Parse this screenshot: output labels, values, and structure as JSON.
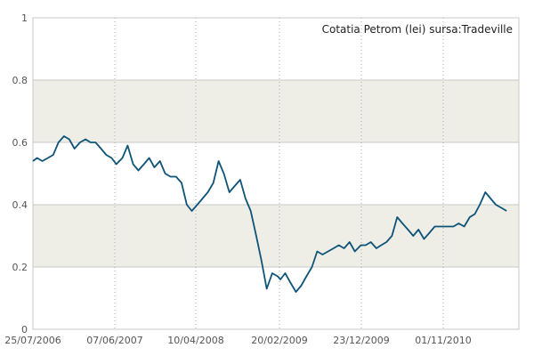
{
  "chart_data": {
    "type": "line",
    "title": "Cotatia Petrom (lei) sursa:Tradeville",
    "xlabel": "",
    "ylabel": "",
    "ylim": [
      0,
      1
    ],
    "grid": true,
    "y_ticks": [
      "0",
      "0.2",
      "0.4",
      "0.6",
      "0.8",
      "1"
    ],
    "x_ticks": [
      "25/07/2006",
      "07/06/2007",
      "10/04/2008",
      "20/02/2009",
      "23/12/2009",
      "01/11/2010"
    ],
    "colors": {
      "line": "#0e5479",
      "band": "#eeeee6",
      "border": "#c8c8c8",
      "grid": "#aaaaaa"
    },
    "series": [
      {
        "x": [
          "2006-07-25",
          "2006-08-10",
          "2006-08-30",
          "2006-09-20",
          "2006-10-10",
          "2006-10-30",
          "2006-11-20",
          "2006-12-10",
          "2006-12-30",
          "2007-01-20",
          "2007-02-10",
          "2007-03-01",
          "2007-03-20",
          "2007-04-10",
          "2007-04-30",
          "2007-05-20",
          "2007-06-07",
          "2007-06-30",
          "2007-07-20",
          "2007-08-10",
          "2007-08-30",
          "2007-09-20",
          "2007-10-10",
          "2007-10-30",
          "2007-11-20",
          "2007-12-10",
          "2007-12-30",
          "2008-01-20",
          "2008-02-10",
          "2008-03-01",
          "2008-03-20",
          "2008-04-10",
          "2008-04-30",
          "2008-05-20",
          "2008-06-10",
          "2008-06-30",
          "2008-07-20",
          "2008-08-10",
          "2008-08-30",
          "2008-09-20",
          "2008-10-10",
          "2008-10-30",
          "2008-11-20",
          "2008-12-10",
          "2008-12-30",
          "2009-01-20",
          "2009-02-10",
          "2009-02-20",
          "2009-03-10",
          "2009-03-30",
          "2009-04-20",
          "2009-05-10",
          "2009-05-30",
          "2009-06-20",
          "2009-07-10",
          "2009-07-30",
          "2009-08-20",
          "2009-09-10",
          "2009-09-30",
          "2009-10-20",
          "2009-11-10",
          "2009-11-30",
          "2009-12-23",
          "2010-01-10",
          "2010-01-30",
          "2010-02-20",
          "2010-03-10",
          "2010-03-30",
          "2010-04-20",
          "2010-05-10",
          "2010-05-30",
          "2010-06-20",
          "2010-07-10",
          "2010-07-30",
          "2010-08-20",
          "2010-09-10",
          "2010-09-30",
          "2010-11-01",
          "2010-11-20",
          "2010-12-10",
          "2010-12-30",
          "2011-01-20",
          "2011-02-10",
          "2011-03-01",
          "2011-03-20",
          "2011-04-10",
          "2011-04-30",
          "2011-05-20",
          "2011-06-10",
          "2011-06-30"
        ],
        "y": [
          0.54,
          0.55,
          0.54,
          0.55,
          0.56,
          0.6,
          0.62,
          0.61,
          0.58,
          0.6,
          0.61,
          0.6,
          0.6,
          0.58,
          0.56,
          0.55,
          0.53,
          0.55,
          0.59,
          0.53,
          0.51,
          0.53,
          0.55,
          0.52,
          0.54,
          0.5,
          0.49,
          0.49,
          0.47,
          0.4,
          0.38,
          0.4,
          0.42,
          0.44,
          0.47,
          0.54,
          0.5,
          0.44,
          0.46,
          0.48,
          0.42,
          0.38,
          0.3,
          0.22,
          0.13,
          0.18,
          0.17,
          0.16,
          0.18,
          0.15,
          0.12,
          0.14,
          0.17,
          0.2,
          0.25,
          0.24,
          0.25,
          0.26,
          0.27,
          0.26,
          0.28,
          0.25,
          0.27,
          0.27,
          0.28,
          0.26,
          0.27,
          0.28,
          0.3,
          0.36,
          0.34,
          0.32,
          0.3,
          0.32,
          0.29,
          0.31,
          0.33,
          0.33,
          0.33,
          0.33,
          0.34,
          0.33,
          0.36,
          0.37,
          0.4,
          0.44,
          0.42,
          0.4,
          0.39,
          0.38
        ]
      }
    ]
  }
}
